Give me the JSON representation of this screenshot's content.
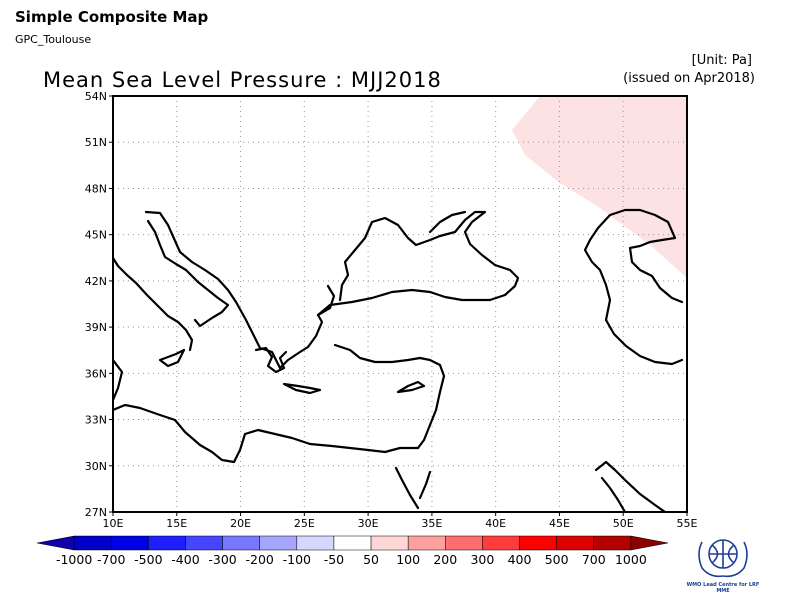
{
  "header": {
    "title": "Simple Composite Map",
    "subtitle": "GPC_Toulouse",
    "map_title": "Mean Sea Level Pressure : MJJ2018",
    "unit": "[Unit: Pa]",
    "issued": "(issued on Apr2018)"
  },
  "map": {
    "lat_ticks": [
      "54N",
      "51N",
      "48N",
      "45N",
      "42N",
      "39N",
      "36N",
      "33N",
      "30N",
      "27N"
    ],
    "lon_ticks": [
      "10E",
      "15E",
      "20E",
      "25E",
      "30E",
      "35E",
      "40E",
      "45E",
      "50E",
      "55E"
    ],
    "lon_range": [
      10,
      55
    ],
    "lat_range": [
      27,
      54
    ],
    "anomaly_fill_color": "#fde2e4",
    "anomaly_category": "50 to 100 Pa"
  },
  "colorbar": {
    "labels": [
      "-1000",
      "-700",
      "-500",
      "-400",
      "-300",
      "-200",
      "-100",
      "-50",
      "50",
      "100",
      "200",
      "300",
      "400",
      "500",
      "700",
      "1000"
    ],
    "colors": [
      "#1400a8",
      "#0000c8",
      "#0000e6",
      "#1e1eff",
      "#4646ff",
      "#7878ff",
      "#a6a6ff",
      "#d6d6ff",
      "#ffffff",
      "#ffd6d6",
      "#ffa0a0",
      "#ff6e6e",
      "#ff3c3c",
      "#ff0000",
      "#dc0000",
      "#b40000",
      "#8c0000"
    ]
  },
  "logo": {
    "caption": "WMO Lead Centre for LRF MME",
    "color": "#1c3f95"
  }
}
